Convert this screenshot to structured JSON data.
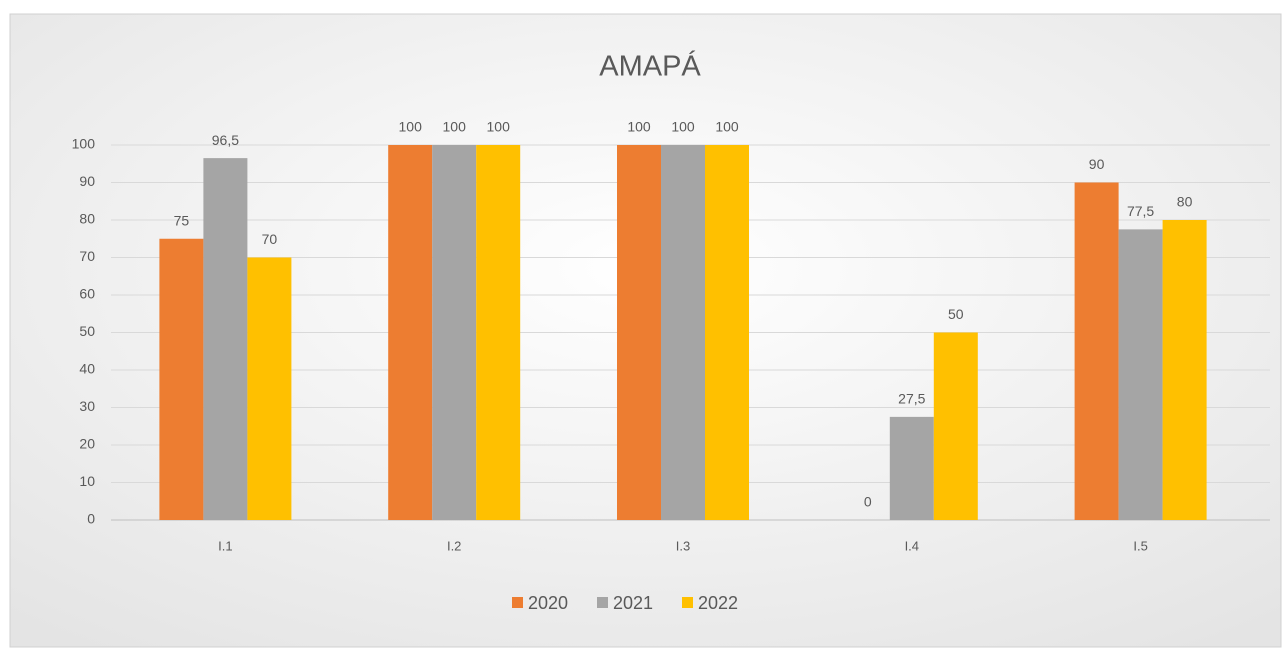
{
  "chart_data": {
    "type": "bar",
    "title": "AMAPÁ",
    "categories": [
      "I.1",
      "I.2",
      "I.3",
      "I.4",
      "I.5"
    ],
    "series": [
      {
        "name": "2020",
        "color": "#ed7d31",
        "values": [
          75,
          100,
          100,
          0,
          90
        ],
        "value_labels": [
          "75",
          "100",
          "100",
          "0",
          "90"
        ]
      },
      {
        "name": "2021",
        "color": "#a5a5a5",
        "values": [
          96.5,
          100,
          100,
          27.5,
          77.5
        ],
        "value_labels": [
          "96,5",
          "100",
          "100",
          "27,5",
          "77,5"
        ]
      },
      {
        "name": "2022",
        "color": "#ffc000",
        "values": [
          70,
          100,
          100,
          50,
          80
        ],
        "value_labels": [
          "70",
          "100",
          "100",
          "50",
          "80"
        ]
      }
    ],
    "ylim": [
      0,
      100
    ],
    "yticks": [
      0,
      10,
      20,
      30,
      40,
      50,
      60,
      70,
      80,
      90,
      100
    ],
    "grid": true,
    "legend": "bottom"
  }
}
